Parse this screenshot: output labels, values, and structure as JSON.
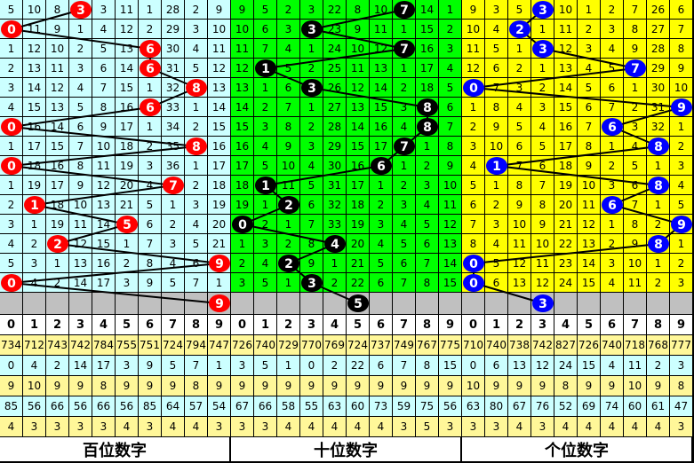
{
  "colors": {
    "grid_bg": [
      "#ccffff",
      "#00ff00",
      "#ffff00"
    ],
    "ball": [
      "#ff0000",
      "#000000",
      "#0000ff"
    ],
    "stat_yellow": "#fff799",
    "stat_cyan": "#ccffff",
    "blank_row": "#c0c0c0"
  },
  "digits": [
    "0",
    "1",
    "2",
    "3",
    "4",
    "5",
    "6",
    "7",
    "8",
    "9"
  ],
  "sections": [
    {
      "label": "百位数字",
      "hits": [
        3,
        0,
        6,
        6,
        8,
        6,
        0,
        8,
        0,
        7,
        1,
        5,
        2,
        9,
        0
      ],
      "last_hit": 9,
      "rows": [
        [
          5,
          10,
          8,
          3,
          3,
          11,
          1,
          28,
          2,
          9
        ],
        [
          0,
          11,
          9,
          1,
          4,
          12,
          2,
          29,
          3,
          10
        ],
        [
          1,
          12,
          10,
          2,
          5,
          13,
          6,
          30,
          4,
          11
        ],
        [
          2,
          13,
          11,
          3,
          6,
          14,
          6,
          31,
          5,
          12
        ],
        [
          3,
          14,
          12,
          4,
          7,
          15,
          1,
          32,
          8,
          13
        ],
        [
          4,
          15,
          13,
          5,
          8,
          16,
          6,
          33,
          1,
          14
        ],
        [
          0,
          16,
          14,
          6,
          9,
          17,
          1,
          34,
          2,
          15
        ],
        [
          1,
          17,
          15,
          7,
          10,
          18,
          2,
          35,
          8,
          16
        ],
        [
          0,
          18,
          16,
          8,
          11,
          19,
          3,
          36,
          1,
          17
        ],
        [
          1,
          19,
          17,
          9,
          12,
          20,
          4,
          7,
          2,
          18
        ],
        [
          2,
          1,
          18,
          10,
          13,
          21,
          5,
          1,
          3,
          19
        ],
        [
          3,
          1,
          19,
          11,
          14,
          5,
          6,
          2,
          4,
          20
        ],
        [
          4,
          2,
          2,
          12,
          15,
          1,
          7,
          3,
          5,
          21
        ],
        [
          5,
          3,
          1,
          13,
          16,
          2,
          8,
          4,
          6,
          9
        ],
        [
          0,
          4,
          2,
          14,
          17,
          3,
          9,
          5,
          7,
          1
        ]
      ],
      "stats": [
        [
          734,
          712,
          743,
          742,
          784,
          755,
          751,
          724,
          794,
          747
        ],
        [
          0,
          4,
          2,
          14,
          17,
          3,
          9,
          5,
          7,
          1
        ],
        [
          9,
          10,
          9,
          9,
          8,
          9,
          9,
          9,
          8,
          9
        ],
        [
          85,
          56,
          66,
          56,
          66,
          56,
          85,
          64,
          57,
          54
        ],
        [
          4,
          3,
          3,
          3,
          3,
          4,
          3,
          4,
          4,
          3
        ]
      ]
    },
    {
      "label": "十位数字",
      "hits": [
        7,
        3,
        7,
        1,
        3,
        8,
        8,
        7,
        6,
        1,
        2,
        0,
        4,
        2,
        3
      ],
      "last_hit": 5,
      "rows": [
        [
          9,
          5,
          2,
          3,
          22,
          8,
          10,
          7,
          14,
          1
        ],
        [
          10,
          6,
          3,
          3,
          23,
          9,
          11,
          1,
          15,
          2
        ],
        [
          11,
          7,
          4,
          1,
          24,
          10,
          12,
          7,
          16,
          3
        ],
        [
          12,
          1,
          5,
          2,
          25,
          11,
          13,
          1,
          17,
          4
        ],
        [
          13,
          1,
          6,
          3,
          26,
          12,
          14,
          2,
          18,
          5
        ],
        [
          14,
          2,
          7,
          1,
          27,
          13,
          15,
          3,
          8,
          6
        ],
        [
          15,
          3,
          8,
          2,
          28,
          14,
          16,
          4,
          8,
          7
        ],
        [
          16,
          4,
          9,
          3,
          29,
          15,
          17,
          7,
          1,
          8
        ],
        [
          17,
          5,
          10,
          4,
          30,
          16,
          6,
          1,
          2,
          9
        ],
        [
          18,
          1,
          11,
          5,
          31,
          17,
          1,
          2,
          3,
          10
        ],
        [
          19,
          1,
          2,
          6,
          32,
          18,
          2,
          3,
          4,
          11
        ],
        [
          0,
          2,
          1,
          7,
          33,
          19,
          3,
          4,
          5,
          12
        ],
        [
          1,
          3,
          2,
          8,
          4,
          20,
          4,
          5,
          6,
          13
        ],
        [
          2,
          4,
          2,
          9,
          1,
          21,
          5,
          6,
          7,
          14
        ],
        [
          3,
          5,
          1,
          3,
          2,
          22,
          6,
          7,
          8,
          15
        ]
      ],
      "stats": [
        [
          726,
          740,
          729,
          770,
          769,
          724,
          737,
          749,
          767,
          775
        ],
        [
          3,
          5,
          1,
          0,
          2,
          22,
          6,
          7,
          8,
          15
        ],
        [
          9,
          9,
          9,
          9,
          9,
          9,
          9,
          9,
          9,
          9
        ],
        [
          67,
          66,
          58,
          55,
          63,
          60,
          73,
          59,
          75,
          56
        ],
        [
          3,
          3,
          4,
          4,
          4,
          4,
          4,
          3,
          5,
          3
        ]
      ]
    },
    {
      "label": "个位数字",
      "hits": [
        3,
        2,
        3,
        7,
        0,
        9,
        6,
        8,
        1,
        8,
        6,
        9,
        8,
        0,
        0
      ],
      "last_hit": 3,
      "rows": [
        [
          9,
          3,
          5,
          3,
          10,
          1,
          2,
          7,
          26,
          6
        ],
        [
          10,
          4,
          2,
          1,
          11,
          2,
          3,
          8,
          27,
          7
        ],
        [
          11,
          5,
          1,
          3,
          12,
          3,
          4,
          9,
          28,
          8
        ],
        [
          12,
          6,
          2,
          1,
          13,
          4,
          5,
          7,
          29,
          9
        ],
        [
          0,
          7,
          3,
          2,
          14,
          5,
          6,
          1,
          30,
          10
        ],
        [
          1,
          8,
          4,
          3,
          15,
          6,
          7,
          2,
          31,
          9
        ],
        [
          2,
          9,
          5,
          4,
          16,
          7,
          6,
          3,
          32,
          1
        ],
        [
          3,
          10,
          6,
          5,
          17,
          8,
          1,
          4,
          8,
          2
        ],
        [
          4,
          1,
          7,
          6,
          18,
          9,
          2,
          5,
          1,
          3
        ],
        [
          5,
          1,
          8,
          7,
          19,
          10,
          3,
          6,
          8,
          4
        ],
        [
          6,
          2,
          9,
          8,
          20,
          11,
          6,
          7,
          1,
          5
        ],
        [
          7,
          3,
          10,
          9,
          21,
          12,
          1,
          8,
          2,
          9
        ],
        [
          8,
          4,
          11,
          10,
          22,
          13,
          2,
          9,
          8,
          1
        ],
        [
          0,
          5,
          12,
          11,
          23,
          14,
          3,
          10,
          1,
          2
        ],
        [
          0,
          6,
          13,
          12,
          24,
          15,
          4,
          11,
          2,
          3
        ]
      ],
      "stats": [
        [
          710,
          740,
          738,
          742,
          827,
          726,
          740,
          718,
          768,
          777
        ],
        [
          0,
          6,
          13,
          12,
          24,
          15,
          4,
          11,
          2,
          3
        ],
        [
          10,
          9,
          9,
          9,
          8,
          9,
          9,
          10,
          9,
          8
        ],
        [
          63,
          80,
          67,
          76,
          52,
          69,
          74,
          60,
          61,
          47
        ],
        [
          3,
          3,
          4,
          3,
          4,
          4,
          4,
          4,
          4,
          3
        ]
      ]
    }
  ]
}
